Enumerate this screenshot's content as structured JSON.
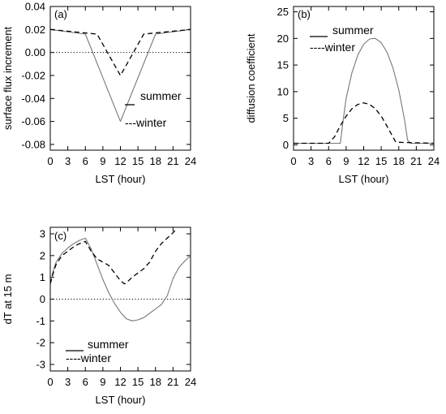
{
  "chart_data": [
    {
      "id": "a",
      "type": "line",
      "panel_label": "(a)",
      "xlabel": "LST (hour)",
      "ylabel": "surface flux increment",
      "xlim": [
        0,
        24
      ],
      "ylim": [
        -0.085,
        0.04
      ],
      "xticks": [
        0,
        3,
        6,
        9,
        12,
        15,
        18,
        21,
        24
      ],
      "yticks": [
        -0.08,
        -0.06,
        -0.04,
        -0.02,
        0.0,
        0.02,
        0.04
      ],
      "ytick_labels": [
        "-0.08",
        "-0.06",
        "-0.04",
        "-0.02",
        "0.00",
        "0.02",
        "0.04"
      ],
      "reference_line": 0,
      "legend": {
        "placement": "center-right",
        "entries": [
          "summer",
          "---winter"
        ]
      },
      "series": [
        {
          "name": "summer",
          "style": "solid",
          "x": [
            0,
            6,
            12,
            18,
            24
          ],
          "y": [
            0.02,
            0.016,
            -0.06,
            0.016,
            0.02
          ]
        },
        {
          "name": "winter",
          "style": "dashed",
          "x": [
            0,
            8,
            12,
            16,
            24
          ],
          "y": [
            0.02,
            0.016,
            -0.02,
            0.016,
            0.02
          ]
        }
      ]
    },
    {
      "id": "b",
      "type": "line",
      "panel_label": "(b)",
      "xlabel": "LST (hour)",
      "ylabel": "diffusion coefficient",
      "xlim": [
        0,
        24
      ],
      "ylim": [
        -1,
        26
      ],
      "xticks": [
        0,
        3,
        6,
        9,
        12,
        15,
        18,
        21,
        24
      ],
      "yticks": [
        0,
        5,
        10,
        15,
        20,
        25
      ],
      "ytick_labels": [
        "0",
        "5",
        "10",
        "15",
        "20",
        "25"
      ],
      "legend": {
        "placement": "top-right",
        "entries": [
          "summer",
          "----winter"
        ]
      },
      "series": [
        {
          "name": "summer",
          "style": "solid",
          "x": [
            0,
            8,
            8.5,
            9,
            10,
            11,
            12,
            13,
            14,
            15,
            16,
            17,
            18,
            19,
            19.5,
            20,
            24
          ],
          "y": [
            0.3,
            0.3,
            4.8,
            8.8,
            13.6,
            16.9,
            18.9,
            19.9,
            20.0,
            19.2,
            17.4,
            14.5,
            10.3,
            4.6,
            0.9,
            0.3,
            0.3
          ]
        },
        {
          "name": "winter",
          "style": "dashed",
          "x": [
            0,
            6,
            7,
            8,
            9,
            10,
            11,
            12,
            13,
            14,
            15,
            16,
            17,
            17.5,
            24
          ],
          "y": [
            0.3,
            0.3,
            1.5,
            3.6,
            5.4,
            6.8,
            7.6,
            7.9,
            7.6,
            6.8,
            5.4,
            3.5,
            1.5,
            0.5,
            0.3
          ]
        }
      ]
    },
    {
      "id": "c",
      "type": "line",
      "panel_label": "(c)",
      "xlabel": "LST (hour)",
      "ylabel": "dT at 15 m",
      "xlim": [
        0,
        24
      ],
      "ylim": [
        -3.3,
        3.3
      ],
      "xticks": [
        0,
        3,
        6,
        9,
        12,
        15,
        18,
        21,
        24
      ],
      "yticks": [
        -3,
        -2,
        -1,
        0,
        1,
        2,
        3
      ],
      "ytick_labels": [
        "-3",
        "-2",
        "-1",
        "0",
        "1",
        "2",
        "3"
      ],
      "reference_line": 0,
      "legend": {
        "placement": "bottom-left",
        "entries": [
          "summer",
          "----winter"
        ]
      },
      "series": [
        {
          "name": "summer",
          "style": "solid",
          "x": [
            0,
            0.5,
            1,
            2,
            3,
            4,
            5,
            6,
            7,
            8,
            9,
            10,
            11,
            12,
            13,
            14,
            15,
            16,
            17,
            18,
            19,
            20,
            21,
            22,
            23,
            24
          ],
          "y": [
            0.7,
            1.3,
            1.7,
            2.1,
            2.35,
            2.55,
            2.7,
            2.8,
            2.3,
            1.6,
            0.9,
            0.3,
            -0.2,
            -0.6,
            -0.9,
            -1.0,
            -0.95,
            -0.85,
            -0.65,
            -0.45,
            -0.25,
            0.15,
            0.95,
            1.45,
            1.75,
            2.0
          ]
        },
        {
          "name": "winter",
          "style": "dashed",
          "x": [
            0,
            0.5,
            1,
            2,
            3,
            4,
            5,
            6,
            7,
            8,
            9,
            10,
            11,
            12,
            12.7,
            13,
            14,
            15,
            16,
            17,
            18,
            19,
            20,
            21,
            21.5
          ],
          "y": [
            0.7,
            1.2,
            1.6,
            2.0,
            2.2,
            2.4,
            2.55,
            2.65,
            2.2,
            1.85,
            1.7,
            1.55,
            1.2,
            0.85,
            0.7,
            0.75,
            1.0,
            1.2,
            1.4,
            1.7,
            2.2,
            2.55,
            2.8,
            3.05,
            3.2
          ]
        }
      ]
    }
  ]
}
